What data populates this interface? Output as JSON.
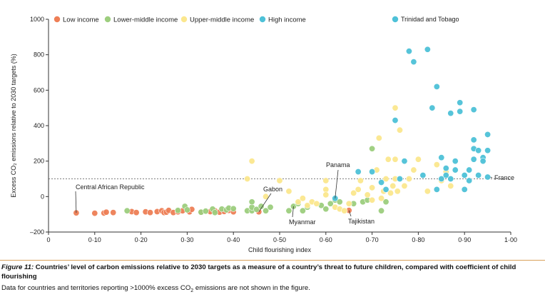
{
  "caption": {
    "figure_label": "Figure 11:",
    "figure_title": " Countries’ level of carbon emissions relative to 2030 targets as a measure of a country’s threat to future children, compared with coefficient of child flourishing",
    "note_before_sub": "Data for countries and territories reporting >1000% excess CO",
    "note_sub": "2",
    "note_after_sub": " emissions are not shown in the figure."
  },
  "chart_data": {
    "type": "scatter",
    "xlabel": "Child flourishing index",
    "ylabel": "Excess CO₂ emissions relative to 2030 targets (%)",
    "xlim": [
      0,
      1.0
    ],
    "ylim": [
      -200,
      1000
    ],
    "x_ticks": [
      0,
      0.1,
      0.2,
      0.3,
      0.4,
      0.5,
      0.6,
      0.7,
      0.8,
      0.9,
      1.0
    ],
    "x_tick_labels": [
      "0",
      "0·10",
      "0·20",
      "0·30",
      "0·40",
      "0·50",
      "0·60",
      "0·70",
      "0·80",
      "0·90",
      "1·00"
    ],
    "y_ticks": [
      -200,
      0,
      200,
      400,
      600,
      800,
      1000
    ],
    "y_tick_labels": [
      "–200",
      "0",
      "200",
      "400",
      "600",
      "800",
      "1000"
    ],
    "reference_line": {
      "y": 100
    },
    "grid": false,
    "legend_position": "top",
    "colors": {
      "Low income": "#ee7f56",
      "Lower-middle income": "#9dce7e",
      "Upper-middle income": "#fbe78e",
      "High income": "#4ec1d8"
    },
    "series": [
      {
        "name": "Low income",
        "points": [
          [
            0.06,
            -92
          ],
          [
            0.1,
            -94
          ],
          [
            0.12,
            -93
          ],
          [
            0.125,
            -88
          ],
          [
            0.14,
            -90
          ],
          [
            0.18,
            -85
          ],
          [
            0.19,
            -90
          ],
          [
            0.21,
            -86
          ],
          [
            0.22,
            -90
          ],
          [
            0.235,
            -85
          ],
          [
            0.245,
            -80
          ],
          [
            0.25,
            -90
          ],
          [
            0.255,
            -88
          ],
          [
            0.26,
            -78
          ],
          [
            0.27,
            -90
          ],
          [
            0.28,
            -86
          ],
          [
            0.29,
            -80
          ],
          [
            0.305,
            -86
          ],
          [
            0.31,
            -72
          ],
          [
            0.33,
            -88
          ],
          [
            0.35,
            -85
          ],
          [
            0.36,
            -80
          ],
          [
            0.37,
            -88
          ],
          [
            0.38,
            -84
          ],
          [
            0.39,
            -78
          ],
          [
            0.4,
            -86
          ],
          [
            0.455,
            -86
          ],
          [
            0.65,
            -78
          ]
        ]
      },
      {
        "name": "Lower-middle income",
        "points": [
          [
            0.17,
            -80
          ],
          [
            0.28,
            -78
          ],
          [
            0.295,
            -55
          ],
          [
            0.3,
            -75
          ],
          [
            0.33,
            -88
          ],
          [
            0.34,
            -82
          ],
          [
            0.355,
            -70
          ],
          [
            0.36,
            -90
          ],
          [
            0.375,
            -70
          ],
          [
            0.385,
            -75
          ],
          [
            0.39,
            -65
          ],
          [
            0.4,
            -68
          ],
          [
            0.43,
            -80
          ],
          [
            0.44,
            -80
          ],
          [
            0.44,
            -60
          ],
          [
            0.44,
            -30
          ],
          [
            0.45,
            -72
          ],
          [
            0.46,
            -55
          ],
          [
            0.47,
            -80
          ],
          [
            0.48,
            -60
          ],
          [
            0.52,
            -80
          ],
          [
            0.53,
            -55
          ],
          [
            0.54,
            -40
          ],
          [
            0.55,
            -80
          ],
          [
            0.56,
            -60
          ],
          [
            0.59,
            -50
          ],
          [
            0.6,
            -70
          ],
          [
            0.61,
            -40
          ],
          [
            0.62,
            -20
          ],
          [
            0.63,
            -30
          ],
          [
            0.66,
            -40
          ],
          [
            0.68,
            -30
          ],
          [
            0.69,
            -20
          ],
          [
            0.7,
            270
          ],
          [
            0.72,
            -80
          ],
          [
            0.73,
            -30
          ]
        ]
      },
      {
        "name": "Upper-middle income",
        "points": [
          [
            0.43,
            100
          ],
          [
            0.44,
            200
          ],
          [
            0.47,
            0
          ],
          [
            0.5,
            90
          ],
          [
            0.52,
            30
          ],
          [
            0.54,
            -30
          ],
          [
            0.55,
            -10
          ],
          [
            0.56,
            -50
          ],
          [
            0.57,
            -30
          ],
          [
            0.58,
            -40
          ],
          [
            0.6,
            90
          ],
          [
            0.6,
            40
          ],
          [
            0.6,
            10
          ],
          [
            0.62,
            -60
          ],
          [
            0.63,
            -70
          ],
          [
            0.64,
            -80
          ],
          [
            0.65,
            -40
          ],
          [
            0.66,
            20
          ],
          [
            0.67,
            40
          ],
          [
            0.675,
            90
          ],
          [
            0.69,
            10
          ],
          [
            0.7,
            50
          ],
          [
            0.7,
            -20
          ],
          [
            0.71,
            150
          ],
          [
            0.715,
            330
          ],
          [
            0.72,
            -10
          ],
          [
            0.725,
            30
          ],
          [
            0.73,
            100
          ],
          [
            0.735,
            210
          ],
          [
            0.74,
            20
          ],
          [
            0.745,
            60
          ],
          [
            0.75,
            500
          ],
          [
            0.75,
            210
          ],
          [
            0.75,
            100
          ],
          [
            0.755,
            30
          ],
          [
            0.76,
            375
          ],
          [
            0.77,
            60
          ],
          [
            0.78,
            100
          ],
          [
            0.79,
            150
          ],
          [
            0.8,
            210
          ],
          [
            0.82,
            30
          ],
          [
            0.84,
            180
          ],
          [
            0.85,
            90
          ],
          [
            0.86,
            140
          ],
          [
            0.87,
            60
          ]
        ]
      },
      {
        "name": "High income",
        "points": [
          [
            0.62,
            -10
          ],
          [
            0.67,
            140
          ],
          [
            0.7,
            140
          ],
          [
            0.72,
            80
          ],
          [
            0.73,
            40
          ],
          [
            0.75,
            430
          ],
          [
            0.76,
            100
          ],
          [
            0.77,
            200
          ],
          [
            0.78,
            820
          ],
          [
            0.79,
            760
          ],
          [
            0.81,
            120
          ],
          [
            0.82,
            830
          ],
          [
            0.83,
            500
          ],
          [
            0.84,
            40
          ],
          [
            0.84,
            620
          ],
          [
            0.85,
            100
          ],
          [
            0.85,
            220
          ],
          [
            0.86,
            160
          ],
          [
            0.86,
            120
          ],
          [
            0.87,
            470
          ],
          [
            0.87,
            100
          ],
          [
            0.88,
            150
          ],
          [
            0.88,
            200
          ],
          [
            0.89,
            530
          ],
          [
            0.89,
            480
          ],
          [
            0.9,
            40
          ],
          [
            0.9,
            120
          ],
          [
            0.91,
            90
          ],
          [
            0.91,
            150
          ],
          [
            0.92,
            490
          ],
          [
            0.92,
            320
          ],
          [
            0.92,
            270
          ],
          [
            0.92,
            210
          ],
          [
            0.93,
            260
          ],
          [
            0.93,
            120
          ],
          [
            0.94,
            220
          ],
          [
            0.94,
            200
          ],
          [
            0.95,
            350
          ],
          [
            0.95,
            260
          ],
          [
            0.95,
            110
          ]
        ]
      }
    ],
    "annotations": [
      {
        "text": "Central African Republic",
        "point": [
          0.06,
          -92
        ]
      },
      {
        "text": "Gabon",
        "point": [
          0.455,
          -86
        ]
      },
      {
        "text": "Myanmar",
        "point": [
          0.53,
          -55
        ]
      },
      {
        "text": "Panama",
        "point": [
          0.62,
          -10
        ]
      },
      {
        "text": "Tajikistan",
        "point": [
          0.65,
          -78
        ]
      },
      {
        "text": "France",
        "point": [
          0.95,
          110
        ]
      },
      {
        "text": "Trinidad and Tobago",
        "point": [
          0.755,
          1000
        ]
      }
    ]
  }
}
